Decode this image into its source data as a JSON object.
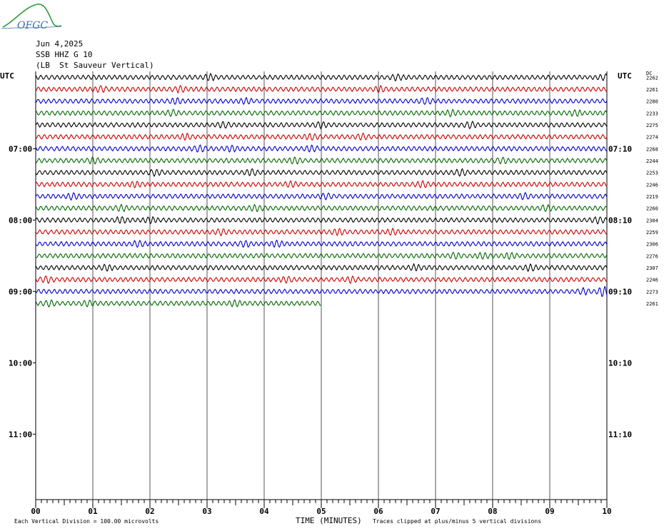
{
  "logo": {
    "text": "OFGC",
    "swoosh_color": "#2e9b3a",
    "text_color": "#3a6fb0"
  },
  "header": {
    "date": "Jun 4,2025",
    "station_line": "SSB HHZ G 10",
    "location_line": "(LB  St Sauveur Vertical)"
  },
  "chart_data": {
    "type": "line",
    "title": "",
    "left_axis_label": "UTC",
    "right_axis_label": "UTC",
    "dc_label": "DC",
    "x_ticks": [
      "00",
      "01",
      "02",
      "03",
      "04",
      "05",
      "06",
      "07",
      "08",
      "09",
      "10"
    ],
    "xlabel": "TIME (MINUTES)",
    "xlim": [
      0,
      10
    ],
    "left_hour_labels": [
      "07:00",
      "08:00",
      "09:00",
      "10:00",
      "11:00"
    ],
    "right_hour_labels": [
      "07:10",
      "08:10",
      "09:10",
      "10:10",
      "11:10"
    ],
    "rows_per_hour": 6,
    "first_hour_row_index": 6,
    "total_rows": 36,
    "row_colors": [
      "#000000",
      "#cc0000",
      "#0000cc",
      "#006600"
    ],
    "traces": [
      {
        "row": 0,
        "dc": 2262,
        "end_minute": 10
      },
      {
        "row": 1,
        "dc": 2261,
        "end_minute": 10
      },
      {
        "row": 2,
        "dc": 2280,
        "end_minute": 10
      },
      {
        "row": 3,
        "dc": 2233,
        "end_minute": 10
      },
      {
        "row": 4,
        "dc": 2275,
        "end_minute": 10
      },
      {
        "row": 5,
        "dc": 2274,
        "end_minute": 10
      },
      {
        "row": 6,
        "dc": 2268,
        "end_minute": 10
      },
      {
        "row": 7,
        "dc": 2244,
        "end_minute": 10
      },
      {
        "row": 8,
        "dc": 2253,
        "end_minute": 10
      },
      {
        "row": 9,
        "dc": 2246,
        "end_minute": 10
      },
      {
        "row": 10,
        "dc": 2219,
        "end_minute": 10
      },
      {
        "row": 11,
        "dc": 2260,
        "end_minute": 10
      },
      {
        "row": 12,
        "dc": 2304,
        "end_minute": 10
      },
      {
        "row": 13,
        "dc": 2259,
        "end_minute": 10
      },
      {
        "row": 14,
        "dc": 2306,
        "end_minute": 10
      },
      {
        "row": 15,
        "dc": 2276,
        "end_minute": 10
      },
      {
        "row": 16,
        "dc": 2307,
        "end_minute": 10
      },
      {
        "row": 17,
        "dc": 2246,
        "end_minute": 10
      },
      {
        "row": 18,
        "dc": 2273,
        "end_minute": 10
      },
      {
        "row": 19,
        "dc": 2261,
        "end_minute": 5
      }
    ],
    "footer_left": "Each Vertical Division =  100.00 microvolts",
    "footer_right": "Traces clipped at plus/minus 5 vertical divisions",
    "grid": true
  }
}
